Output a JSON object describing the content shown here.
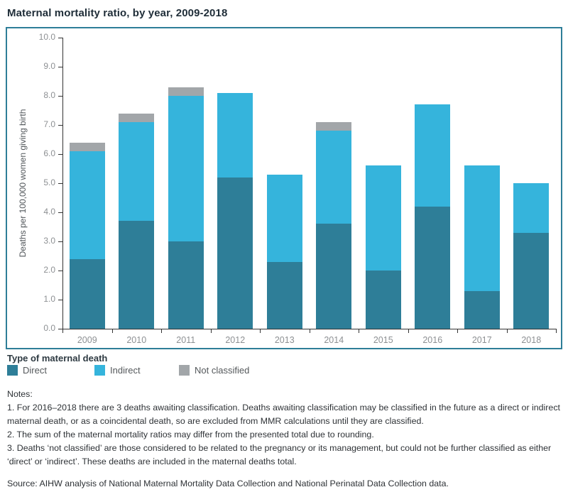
{
  "page": {
    "title": "Maternal mortality ratio, by year, 2009-2018"
  },
  "chart_data": {
    "type": "bar",
    "stacked": true,
    "title": "Maternal mortality ratio, by year, 2009-2018",
    "categories": [
      "2009",
      "2010",
      "2011",
      "2012",
      "2013",
      "2014",
      "2015",
      "2016",
      "2017",
      "2018"
    ],
    "series": [
      {
        "name": "Direct",
        "color": "#2e7e98",
        "values": [
          2.4,
          3.7,
          3.0,
          5.2,
          2.3,
          3.6,
          2.0,
          4.2,
          1.3,
          3.3
        ]
      },
      {
        "name": "Indirect",
        "color": "#35b4dc",
        "values": [
          3.7,
          3.4,
          5.0,
          2.9,
          3.0,
          3.2,
          3.6,
          3.5,
          4.3,
          1.7
        ]
      },
      {
        "name": "Not classified",
        "color": "#a2a6a9",
        "values": [
          0.3,
          0.3,
          0.3,
          0.0,
          0.0,
          0.3,
          0.0,
          0.0,
          0.0,
          0.0
        ]
      }
    ],
    "totals": [
      6.4,
      7.4,
      8.3,
      8.1,
      5.3,
      7.1,
      5.6,
      7.7,
      5.6,
      5.0
    ],
    "xlabel": "",
    "ylabel": "Deaths per 100,000 women giving birth",
    "ylim": [
      0,
      10
    ],
    "yticks": [
      "0.0",
      "1.0",
      "2.0",
      "3.0",
      "4.0",
      "5.0",
      "6.0",
      "7.0",
      "8.0",
      "9.0",
      "10.0"
    ],
    "grid": false,
    "legend_position": "below-left"
  },
  "legend": {
    "title": "Type of maternal death",
    "items": [
      {
        "label": "Direct",
        "color": "#2e7e98"
      },
      {
        "label": "Indirect",
        "color": "#35b4dc"
      },
      {
        "label": "Not classified",
        "color": "#a2a6a9"
      }
    ]
  },
  "notes": {
    "heading": "Notes:",
    "items": [
      "1. For 2016–2018 there are 3 deaths awaiting classification. Deaths awaiting classification may be classified in the future as a direct or indirect maternal death, or as a coincidental death, so are excluded from MMR calculations until they are classified.",
      "2. The sum of the maternal mortality ratios may differ from the presented total due to rounding.",
      "3. Deaths ‘not classified’ are those considered to be related to the pregnancy or its management, but could not be further classified as either ‘direct’ or ‘indirect’. These deaths are included in the maternal deaths total."
    ],
    "source": "Source: AIHW analysis of National Maternal Mortality Data Collection and National Perinatal Data Collection data."
  },
  "colors": {
    "frame_border": "#2e7e98",
    "axis_line": "#333333",
    "tick_label": "#8d9093",
    "title_text": "#1f2d38"
  }
}
